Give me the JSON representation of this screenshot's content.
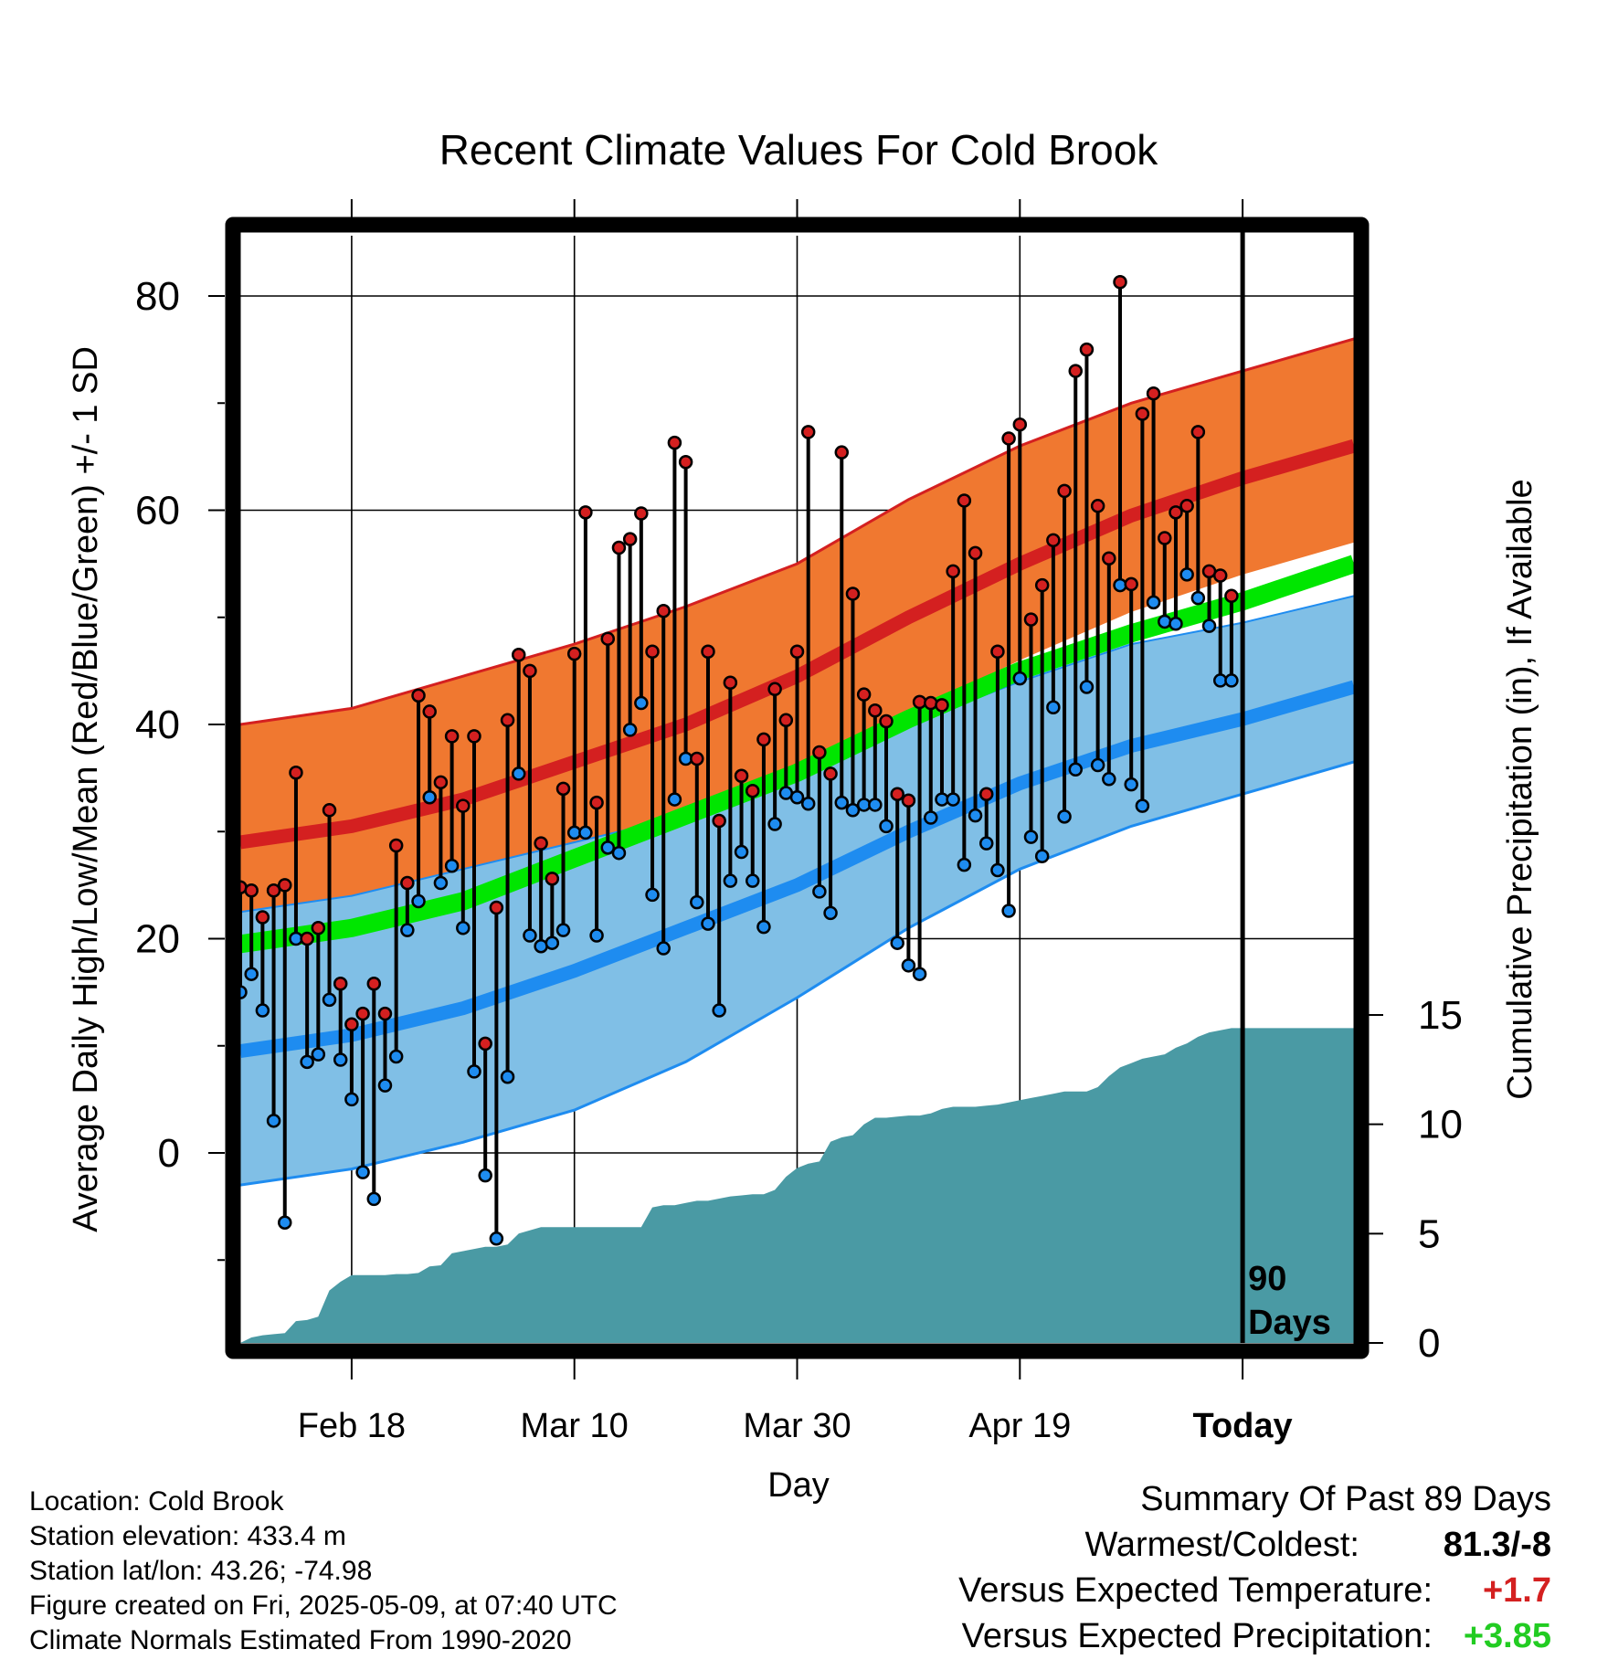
{
  "chart_data": {
    "type": "line",
    "title": "Recent Climate Values For Cold Brook",
    "xlabel": "Day",
    "ylabel": "Average Daily High/Low/Mean (Red/Blue/Green) +/- 1 SD",
    "y2label": "Cumulative Precipitation (in), If Available",
    "ylim": [
      -17,
      86
    ],
    "y2lim": [
      0,
      30
    ],
    "yticks": [
      0,
      20,
      40,
      60,
      80
    ],
    "y2ticks": [
      0,
      5,
      10,
      15
    ],
    "x_range_days": [
      0,
      100
    ],
    "x_ticks": [
      {
        "day": 10,
        "label": "Feb 18"
      },
      {
        "day": 30,
        "label": "Mar 10"
      },
      {
        "day": 50,
        "label": "Mar 30"
      },
      {
        "day": 70,
        "label": "Apr 19"
      },
      {
        "day": 90,
        "label": "Today"
      }
    ],
    "today_day": 90,
    "today_label": "90 Days",
    "grid": true,
    "colors": {
      "high_band": "#f07830",
      "high_line": "#d42020",
      "low_band": "#80bfe6",
      "low_line": "#1e8cf0",
      "mean_line": "#00e600",
      "overlap": "#9a1010",
      "precip": "#4a9aa4",
      "high_marker": "#d42020",
      "low_marker": "#1e8cf0"
    },
    "normals": {
      "days": [
        0,
        10,
        20,
        30,
        40,
        50,
        60,
        70,
        80,
        90,
        100
      ],
      "high_mean": [
        29.0,
        30.5,
        33.0,
        36.5,
        40.0,
        44.5,
        50.0,
        55.0,
        59.5,
        63.0,
        66.0
      ],
      "high_upper": [
        40.0,
        41.5,
        44.5,
        47.5,
        51.0,
        55.0,
        61.0,
        66.0,
        70.0,
        73.0,
        76.0
      ],
      "high_lower": [
        22.5,
        24.0,
        26.5,
        29.0,
        31.5,
        35.0,
        41.0,
        46.0,
        50.5,
        54.0,
        57.0
      ],
      "low_mean": [
        9.5,
        11.0,
        13.5,
        17.0,
        21.0,
        25.0,
        30.0,
        34.5,
        38.0,
        40.5,
        43.5
      ],
      "low_upper": [
        22.5,
        24.0,
        26.5,
        29.0,
        31.5,
        35.5,
        40.0,
        44.0,
        47.5,
        49.5,
        52.0
      ],
      "low_lower": [
        -3.0,
        -1.5,
        1.0,
        4.0,
        8.5,
        14.5,
        21.0,
        26.5,
        30.5,
        33.5,
        36.5
      ],
      "mean": [
        19.5,
        21.0,
        23.5,
        27.5,
        31.5,
        35.5,
        40.5,
        45.0,
        48.5,
        51.5,
        55.0
      ]
    },
    "series": [
      {
        "name": "High",
        "days": [
          0,
          1,
          2,
          3,
          4,
          5,
          6,
          7,
          8,
          9,
          10,
          11,
          12,
          13,
          14,
          15,
          16,
          17,
          18,
          19,
          20,
          21,
          22,
          23,
          24,
          25,
          26,
          27,
          28,
          29,
          30,
          31,
          32,
          33,
          34,
          35,
          36,
          37,
          38,
          39,
          40,
          41,
          42,
          43,
          44,
          45,
          46,
          47,
          48,
          49,
          50,
          51,
          52,
          53,
          54,
          55,
          56,
          57,
          58,
          59,
          60,
          61,
          62,
          63,
          64,
          65,
          66,
          67,
          68,
          69,
          70,
          71,
          72,
          73,
          74,
          75,
          76,
          77,
          78,
          79,
          80,
          81,
          82,
          83,
          84,
          85,
          86,
          87,
          88,
          89
        ],
        "values": [
          24.8,
          24.5,
          22.0,
          24.5,
          25.0,
          35.5,
          20.0,
          21.0,
          32.0,
          15.8,
          12.0,
          13.0,
          15.8,
          13.0,
          28.7,
          25.2,
          42.7,
          41.2,
          34.6,
          38.9,
          32.4,
          38.9,
          10.2,
          22.9,
          40.4,
          46.5,
          45.0,
          28.9,
          25.6,
          34.0,
          46.6,
          59.8,
          32.7,
          48.0,
          56.5,
          57.3,
          59.7,
          46.8,
          50.6,
          66.3,
          64.5,
          36.8,
          46.8,
          31.0,
          43.9,
          35.2,
          33.8,
          38.6,
          43.3,
          40.4,
          46.8,
          67.3,
          37.4,
          35.4,
          65.4,
          52.2,
          42.8,
          41.3,
          40.3,
          33.5,
          32.9,
          42.1,
          42.0,
          41.8,
          54.3,
          60.9,
          56.0,
          33.5,
          46.8,
          66.7,
          68.0,
          49.8,
          53.0,
          57.2,
          61.8,
          73.0,
          75.0,
          60.4,
          55.5,
          81.3,
          53.1,
          69.0,
          70.9,
          57.4,
          59.8,
          60.4,
          67.3,
          54.3,
          53.9,
          52.0
        ]
      },
      {
        "name": "Low",
        "days": [
          0,
          1,
          2,
          3,
          4,
          5,
          6,
          7,
          8,
          9,
          10,
          11,
          12,
          13,
          14,
          15,
          16,
          17,
          18,
          19,
          20,
          21,
          22,
          23,
          24,
          25,
          26,
          27,
          28,
          29,
          30,
          31,
          32,
          33,
          34,
          35,
          36,
          37,
          38,
          39,
          40,
          41,
          42,
          43,
          44,
          45,
          46,
          47,
          48,
          49,
          50,
          51,
          52,
          53,
          54,
          55,
          56,
          57,
          58,
          59,
          60,
          61,
          62,
          63,
          64,
          65,
          66,
          67,
          68,
          69,
          70,
          71,
          72,
          73,
          74,
          75,
          76,
          77,
          78,
          79,
          80,
          81,
          82,
          83,
          84,
          85,
          86,
          87,
          88,
          89
        ],
        "values": [
          15.0,
          16.7,
          13.3,
          3.0,
          -6.5,
          20.0,
          8.5,
          9.2,
          14.3,
          8.7,
          5.0,
          -1.8,
          -4.3,
          6.3,
          9.0,
          20.8,
          23.5,
          33.2,
          25.2,
          26.8,
          21.0,
          7.6,
          -2.1,
          -8.0,
          7.1,
          35.4,
          20.3,
          19.3,
          19.6,
          20.8,
          29.9,
          29.9,
          20.3,
          28.5,
          28.0,
          39.5,
          42.0,
          24.1,
          19.1,
          33.0,
          36.8,
          23.4,
          21.4,
          13.3,
          25.4,
          28.1,
          25.4,
          21.1,
          30.7,
          33.6,
          33.2,
          32.6,
          24.4,
          22.4,
          32.7,
          32.0,
          32.5,
          32.5,
          30.5,
          19.6,
          17.5,
          16.7,
          31.3,
          33.0,
          33.0,
          26.9,
          31.5,
          28.9,
          26.4,
          22.6,
          44.3,
          29.5,
          27.7,
          41.6,
          31.4,
          35.8,
          43.5,
          36.2,
          34.9,
          53.0,
          34.4,
          32.4,
          51.4,
          49.6,
          49.4,
          54.0,
          51.8,
          49.2,
          44.1,
          44.1
        ]
      },
      {
        "name": "Cumulative Precipitation",
        "days": [
          0,
          1,
          2,
          3,
          4,
          5,
          6,
          7,
          8,
          9,
          10,
          11,
          12,
          13,
          14,
          15,
          16,
          17,
          18,
          19,
          20,
          21,
          22,
          23,
          24,
          25,
          26,
          27,
          28,
          29,
          30,
          31,
          32,
          33,
          34,
          35,
          36,
          37,
          38,
          39,
          40,
          41,
          42,
          43,
          44,
          45,
          46,
          47,
          48,
          49,
          50,
          51,
          52,
          53,
          54,
          55,
          56,
          57,
          58,
          59,
          60,
          61,
          62,
          63,
          64,
          65,
          66,
          67,
          68,
          69,
          70,
          71,
          72,
          73,
          74,
          75,
          76,
          77,
          78,
          79,
          80,
          81,
          82,
          83,
          84,
          85,
          86,
          87,
          88,
          89,
          90,
          100
        ],
        "values": [
          0.0,
          0.25,
          0.35,
          0.4,
          0.45,
          1.0,
          1.05,
          1.2,
          2.4,
          2.8,
          3.1,
          3.1,
          3.1,
          3.1,
          3.15,
          3.15,
          3.2,
          3.5,
          3.55,
          4.1,
          4.2,
          4.3,
          4.4,
          4.4,
          4.5,
          5.0,
          5.15,
          5.3,
          5.3,
          5.3,
          5.3,
          5.3,
          5.3,
          5.3,
          5.3,
          5.3,
          5.3,
          6.2,
          6.3,
          6.3,
          6.4,
          6.5,
          6.5,
          6.6,
          6.7,
          6.75,
          6.8,
          6.8,
          7.0,
          7.6,
          8.0,
          8.2,
          8.3,
          9.2,
          9.4,
          9.5,
          10.0,
          10.3,
          10.3,
          10.35,
          10.4,
          10.4,
          10.5,
          10.7,
          10.8,
          10.8,
          10.8,
          10.85,
          10.9,
          11.0,
          11.1,
          11.2,
          11.3,
          11.4,
          11.5,
          11.5,
          11.5,
          11.7,
          12.2,
          12.6,
          12.8,
          13.0,
          13.1,
          13.2,
          13.5,
          13.7,
          14.0,
          14.2,
          14.3,
          14.4,
          14.4,
          14.4
        ]
      }
    ]
  },
  "info": {
    "location": "Location: Cold Brook",
    "elevation": "Station elevation: 433.4 m",
    "latlon": "Station lat/lon: 43.26; -74.98",
    "created": "Figure created on Fri, 2025-05-09, at 07:40 UTC",
    "normals": "Climate Normals Estimated From 1990-2020"
  },
  "summary": {
    "title": "Summary Of Past 89 Days",
    "warm_cold_label": "Warmest/Coldest:",
    "warm_cold_value": "81.3/-8",
    "temp_label": "Versus Expected Temperature:",
    "temp_value": "+1.7",
    "temp_color": "#d42020",
    "precip_label": "Versus Expected Precipitation:",
    "precip_value": "+3.85",
    "precip_color": "#22cc22"
  }
}
